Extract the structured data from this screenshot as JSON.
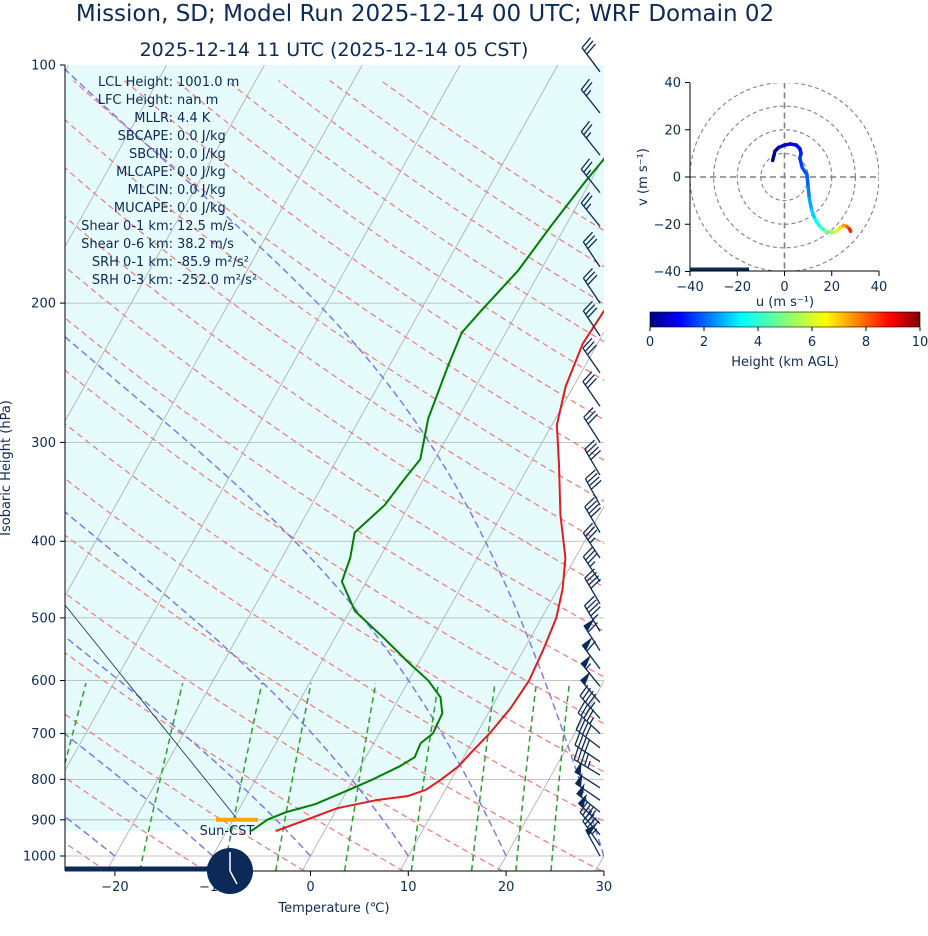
{
  "chart_data": [
    {
      "type": "line",
      "subtype": "skew-t log-p sounding",
      "title": "Mission, SD; Model Run 2025-12-14 00 UTC; WRF Domain 02",
      "subtitle": "2025-12-14 11 UTC  (2025-12-14 05 CST)",
      "xlabel": "Temperature (℃)",
      "ylabel": "Isobaric Height (hPa)",
      "xlim": [
        -25,
        30
      ],
      "ylim": [
        1050,
        100
      ],
      "yscale": "log",
      "x_ticks": [
        "−20",
        "−10",
        "0",
        "10",
        "20",
        "30"
      ],
      "y_ticks": [
        "100",
        "200",
        "300",
        "400",
        "500",
        "600",
        "700",
        "800",
        "900",
        "1000"
      ],
      "grid": true,
      "colors": {
        "temperature": "#e41a1c",
        "dewpoint": "#008000",
        "dry_adiabat": "#f08080",
        "moist_adiabat": "#7b7bf0",
        "mixing_ratio": "#2ca02c",
        "isotherm": "#aaaaaa",
        "cape_shading": "#e6fbfb",
        "barb": "#0b2a57",
        "lcl_marker": "#ffa500"
      },
      "series": [
        {
          "name": "Temperature",
          "points": [
            [
              -5.0,
              930
            ],
            [
              -2.5,
              900
            ],
            [
              0,
              870
            ],
            [
              3.5,
              850
            ],
            [
              6.5,
              840
            ],
            [
              8,
              825
            ],
            [
              9,
              800
            ],
            [
              9.5,
              785
            ],
            [
              10,
              770
            ],
            [
              10.5,
              740
            ],
            [
              11.3,
              700
            ],
            [
              12,
              650
            ],
            [
              12.3,
              600
            ],
            [
              12,
              550
            ],
            [
              11.5,
              500
            ],
            [
              10.5,
              460
            ],
            [
              9,
              420
            ],
            [
              6,
              370
            ],
            [
              3,
              320
            ],
            [
              0.5,
              285
            ],
            [
              -0.8,
              255
            ],
            [
              -1.5,
              225
            ],
            [
              -1.2,
              205
            ],
            [
              -0.5,
              190
            ],
            [
              1.0,
              175
            ],
            [
              3.5,
              155
            ],
            [
              6.5,
              135
            ],
            [
              10,
              118
            ],
            [
              13,
              106
            ],
            [
              14.5,
              100
            ]
          ]
        },
        {
          "name": "Dewpoint",
          "points": [
            [
              -7.5,
              930
            ],
            [
              -6.5,
              900
            ],
            [
              -5,
              880
            ],
            [
              -2.5,
              860
            ],
            [
              -1,
              840
            ],
            [
              0.5,
              820
            ],
            [
              2,
              800
            ],
            [
              4,
              770
            ],
            [
              5,
              750
            ],
            [
              4.8,
              720
            ],
            [
              5.5,
              700
            ],
            [
              5.3,
              660
            ],
            [
              4.2,
              630
            ],
            [
              2,
              600
            ],
            [
              -1,
              570
            ],
            [
              -5,
              530
            ],
            [
              -9.5,
              490
            ],
            [
              -12.5,
              450
            ],
            [
              -13,
              420
            ],
            [
              -14,
              390
            ],
            [
              -12.5,
              360
            ],
            [
              -12,
              335
            ],
            [
              -11.5,
              315
            ],
            [
              -13,
              280
            ],
            [
              -14,
              240
            ],
            [
              -14.5,
              218
            ],
            [
              -13.8,
              205
            ],
            [
              -12.3,
              182
            ],
            [
              -11.5,
              160
            ],
            [
              -10.5,
              140
            ],
            [
              -9,
              120
            ],
            [
              -7,
              106
            ],
            [
              -6.2,
              100
            ]
          ]
        }
      ],
      "parameters": [
        {
          "label": "LCL Height:",
          "value": "1001.0 m"
        },
        {
          "label": "LFC Height:",
          "value": "nan m"
        },
        {
          "label": "MLLR:",
          "value": "4.4 K"
        },
        {
          "label": "SBCAPE:",
          "value": "0.0 J/kg"
        },
        {
          "label": "SBCIN:",
          "value": "0.0 J/kg"
        },
        {
          "label": "MLCAPE:",
          "value": "0.0 J/kg"
        },
        {
          "label": "MLCIN:",
          "value": "0.0 J/kg"
        },
        {
          "label": "MUCAPE:",
          "value": "0.0 J/kg"
        },
        {
          "label": "Shear 0-1 km:",
          "value": "12.5 m/s"
        },
        {
          "label": "Shear 0-6 km:",
          "value": "38.2 m/s"
        },
        {
          "label": "SRH 0-1 km:",
          "value": "-85.9 m²/s²"
        },
        {
          "label": "SRH 0-3 km:",
          "value": "-252.0 m²/s²"
        }
      ],
      "lcl_pressure_hPa": 900,
      "sun_label": "Sun-CST",
      "wind_barbs": [
        {
          "p": 1000,
          "u": 12,
          "v": -22
        },
        {
          "p": 970,
          "u": 14,
          "v": -20
        },
        {
          "p": 940,
          "u": 16,
          "v": -18
        },
        {
          "p": 910,
          "u": 18,
          "v": -17
        },
        {
          "p": 880,
          "u": 20,
          "v": -16
        },
        {
          "p": 850,
          "u": 22,
          "v": -15
        },
        {
          "p": 820,
          "u": 22,
          "v": -14
        },
        {
          "p": 790,
          "u": 20,
          "v": -12
        },
        {
          "p": 760,
          "u": 18,
          "v": -12
        },
        {
          "p": 730,
          "u": 17,
          "v": -13
        },
        {
          "p": 700,
          "u": 16,
          "v": -15
        },
        {
          "p": 670,
          "u": 16,
          "v": -18
        },
        {
          "p": 640,
          "u": 17,
          "v": -20
        },
        {
          "p": 610,
          "u": 18,
          "v": -22
        },
        {
          "p": 580,
          "u": 18,
          "v": -24
        },
        {
          "p": 550,
          "u": 16,
          "v": -25
        },
        {
          "p": 520,
          "u": 12,
          "v": -20
        },
        {
          "p": 480,
          "u": 10,
          "v": -17
        },
        {
          "p": 450,
          "u": 10,
          "v": -15
        },
        {
          "p": 420,
          "u": 10,
          "v": -15
        },
        {
          "p": 390,
          "u": 10,
          "v": -17
        },
        {
          "p": 360,
          "u": 10,
          "v": -18
        },
        {
          "p": 330,
          "u": 10,
          "v": -17
        },
        {
          "p": 300,
          "u": 9,
          "v": -14
        },
        {
          "p": 270,
          "u": 9,
          "v": -13
        },
        {
          "p": 245,
          "u": 9,
          "v": -13
        },
        {
          "p": 220,
          "u": 8,
          "v": -12
        },
        {
          "p": 200,
          "u": 8,
          "v": -12
        },
        {
          "p": 180,
          "u": 8,
          "v": -12
        },
        {
          "p": 160,
          "u": 8,
          "v": -10
        },
        {
          "p": 145,
          "u": 8,
          "v": -10
        },
        {
          "p": 130,
          "u": 8,
          "v": -10
        },
        {
          "p": 115,
          "u": 8,
          "v": -10
        },
        {
          "p": 102,
          "u": 9,
          "v": -12
        }
      ]
    },
    {
      "type": "line",
      "subtype": "hodograph",
      "xlabel": "u (m s⁻¹)",
      "ylabel": "v (m s⁻¹)",
      "xlim": [
        -40,
        40
      ],
      "ylim": [
        -40,
        40
      ],
      "x_ticks": [
        "−40",
        "−20",
        "0",
        "20",
        "40"
      ],
      "y_ticks": [
        "40",
        "20",
        "0",
        "−20",
        "−40"
      ],
      "rings": [
        10,
        20,
        30,
        40
      ],
      "colorbar": {
        "label": "Height (km AGL)",
        "range": [
          0,
          10
        ],
        "ticks": [
          "0",
          "2",
          "4",
          "6",
          "8",
          "10"
        ],
        "colormap": "jet"
      },
      "points": [
        {
          "u": -5,
          "v": 7,
          "h": 0.05
        },
        {
          "u": -4.5,
          "v": 9,
          "h": 0.2
        },
        {
          "u": -4,
          "v": 11,
          "h": 0.4
        },
        {
          "u": -2.5,
          "v": 12.5,
          "h": 0.6
        },
        {
          "u": 0,
          "v": 13.5,
          "h": 0.8
        },
        {
          "u": 2.5,
          "v": 14,
          "h": 1.0
        },
        {
          "u": 5,
          "v": 13.5,
          "h": 1.2
        },
        {
          "u": 6.5,
          "v": 12,
          "h": 1.4
        },
        {
          "u": 7,
          "v": 10,
          "h": 1.6
        },
        {
          "u": 6.5,
          "v": 8,
          "h": 1.8
        },
        {
          "u": 7.5,
          "v": 4,
          "h": 2.0
        },
        {
          "u": 9.5,
          "v": 1,
          "h": 2.2
        },
        {
          "u": 10,
          "v": -4,
          "h": 2.5
        },
        {
          "u": 10.5,
          "v": -9,
          "h": 2.9
        },
        {
          "u": 11.5,
          "v": -14,
          "h": 3.3
        },
        {
          "u": 13,
          "v": -18,
          "h": 3.8
        },
        {
          "u": 15,
          "v": -21,
          "h": 4.3
        },
        {
          "u": 17.5,
          "v": -23,
          "h": 4.9
        },
        {
          "u": 20,
          "v": -23.5,
          "h": 5.5
        },
        {
          "u": 22,
          "v": -23,
          "h": 6.0
        },
        {
          "u": 23.5,
          "v": -21.5,
          "h": 6.6
        },
        {
          "u": 25,
          "v": -20.5,
          "h": 7.2
        },
        {
          "u": 26.5,
          "v": -21,
          "h": 7.8
        },
        {
          "u": 27.5,
          "v": -22,
          "h": 8.4
        },
        {
          "u": 28,
          "v": -23,
          "h": 9.0
        }
      ]
    }
  ]
}
